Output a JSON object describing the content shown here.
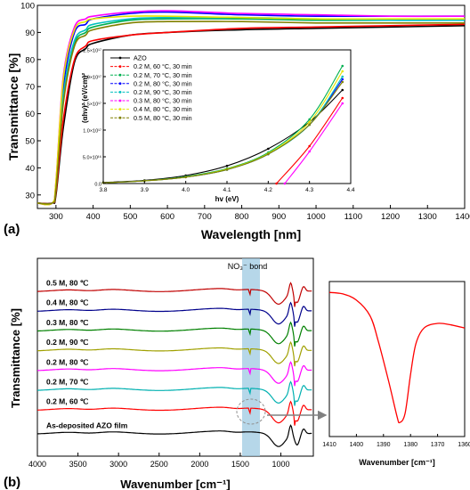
{
  "panel_a": {
    "label": "(a)",
    "xlabel": "Wavelength [nm]",
    "ylabel": "Transmittance [%]",
    "xticks": [
      "300",
      "400",
      "500",
      "600",
      "700",
      "800",
      "900",
      "1000",
      "1100",
      "1200",
      "1300",
      "1400"
    ],
    "yticks": [
      "30",
      "40",
      "50",
      "60",
      "70",
      "80",
      "90",
      "100"
    ],
    "inset": {
      "xlabel": "hv (eV)",
      "ylabel": "(αhν)² (eV/cm)²",
      "xticks": [
        "3.8",
        "3.9",
        "4.0",
        "4.1",
        "4.2",
        "4.3",
        "4.4"
      ],
      "yticks": [
        "0.0",
        "5.0×10¹⁶",
        "1.0×10¹⁷",
        "1.5×10¹⁷",
        "2.0×10¹⁷",
        "2.5×10¹⁷"
      ],
      "legend": [
        {
          "name": "AZO",
          "color": "#000000"
        },
        {
          "name": "0.2 M, 60 °C, 30 min",
          "color": "#ff0000"
        },
        {
          "name": "0.2 M, 70 °C, 30 min",
          "color": "#00b050"
        },
        {
          "name": "0.2 M, 80 °C, 30 min",
          "color": "#0000ff"
        },
        {
          "name": "0.2 M, 90 °C, 30 min",
          "color": "#00c0c0"
        },
        {
          "name": "0.3 M, 80 °C, 30 min",
          "color": "#ff00ff"
        },
        {
          "name": "0.4 M, 80 °C, 30 min",
          "color": "#e6e600"
        },
        {
          "name": "0.5 M, 80 °C, 30 min",
          "color": "#808000"
        }
      ]
    }
  },
  "panel_b": {
    "label": "(b)",
    "xlabel": "Wavenumber [cm⁻¹]",
    "ylabel": "Transmittance [%]",
    "xticks": [
      "4000",
      "3500",
      "3000",
      "2500",
      "2000",
      "1500",
      "1000"
    ],
    "annotation": "NO₃⁻ bond",
    "trace_labels": [
      "0.5 M, 80 ℃",
      "0.4 M, 80 ℃",
      "0.3 M, 80 ℃",
      "0.2 M, 90 ℃",
      "0.2 M, 80 ℃",
      "0.2 M, 70 ℃",
      "0.2 M, 60 ℃",
      "As-deposited AZO film"
    ],
    "zoom": {
      "xlabel": "Wavenumber [cm⁻¹]",
      "xticks": [
        "1410",
        "1400",
        "1390",
        "1380",
        "1370",
        "1360"
      ]
    }
  },
  "chart_data": [
    {
      "type": "line",
      "xlabel": "Wavelength [nm]",
      "ylabel": "Transmittance [%]",
      "xlim": [
        250,
        1400
      ],
      "ylim": [
        25,
        100
      ],
      "grid": false,
      "series": [
        {
          "name": "AZO",
          "color": "#000000",
          "x": [
            250,
            290,
            300,
            320,
            350,
            380,
            400,
            500,
            600,
            800,
            1000,
            1200,
            1400
          ],
          "y": [
            27,
            27,
            30,
            55,
            79,
            84,
            86,
            89,
            90,
            91,
            91.5,
            92,
            92.5
          ]
        },
        {
          "name": "0.2 M, 60 °C, 30 min",
          "color": "#ff0000",
          "x": [
            250,
            290,
            300,
            320,
            350,
            380,
            400,
            500,
            600,
            800,
            1000,
            1200,
            1400
          ],
          "y": [
            27,
            27,
            31,
            58,
            80,
            85,
            87,
            89,
            90,
            91.5,
            92,
            92.5,
            93
          ]
        },
        {
          "name": "0.2 M, 70 °C, 30 min",
          "color": "#00b050",
          "x": [
            250,
            290,
            300,
            320,
            350,
            380,
            400,
            500,
            600,
            800,
            1000,
            1200,
            1400
          ],
          "y": [
            27,
            27,
            33,
            66,
            86,
            90,
            92,
            94.5,
            95,
            95,
            94.5,
            94.5,
            94.5
          ]
        },
        {
          "name": "0.2 M, 80 °C, 30 min",
          "color": "#0000ff",
          "x": [
            250,
            290,
            300,
            320,
            350,
            380,
            400,
            500,
            600,
            800,
            1000,
            1200,
            1400
          ],
          "y": [
            27,
            27,
            34,
            70,
            90,
            93,
            95,
            97,
            97.5,
            96.5,
            96,
            96,
            96
          ]
        },
        {
          "name": "0.2 M, 90 °C, 30 min",
          "color": "#00c0c0",
          "x": [
            250,
            290,
            300,
            320,
            350,
            380,
            400,
            500,
            600,
            800,
            1000,
            1200,
            1400
          ],
          "y": [
            27,
            27,
            33,
            67,
            87,
            91,
            93,
            95,
            95.5,
            95.5,
            95,
            94.5,
            94.5
          ]
        },
        {
          "name": "0.3 M, 80 °C, 30 min",
          "color": "#ff00ff",
          "x": [
            250,
            290,
            300,
            320,
            350,
            380,
            400,
            500,
            600,
            800,
            1000,
            1200,
            1400
          ],
          "y": [
            27,
            27,
            35,
            74,
            92,
            95,
            96,
            97.5,
            98,
            97,
            96.5,
            96,
            96
          ]
        },
        {
          "name": "0.4 M, 80 °C, 30 min",
          "color": "#e6e600",
          "x": [
            250,
            290,
            300,
            320,
            350,
            380,
            400,
            500,
            600,
            800,
            1000,
            1200,
            1400
          ],
          "y": [
            27,
            27,
            35,
            73,
            91,
            94,
            95,
            96,
            96,
            95.5,
            95,
            95,
            95
          ]
        },
        {
          "name": "0.5 M, 80 °C, 30 min",
          "color": "#808000",
          "x": [
            250,
            290,
            300,
            320,
            350,
            380,
            400,
            500,
            600,
            800,
            1000,
            1200,
            1400
          ],
          "y": [
            27,
            27,
            32,
            64,
            85,
            89,
            91,
            93.5,
            94,
            94,
            93.5,
            93.5,
            93.5
          ]
        }
      ]
    },
    {
      "type": "line",
      "xlabel": "hv (eV)",
      "ylabel": "(αhν)² (eV/cm)²",
      "xlim": [
        3.8,
        4.4
      ],
      "ylim": [
        0,
        2.5e+17
      ],
      "legend": "top-left",
      "series": [
        {
          "name": "AZO",
          "color": "#000000",
          "x": [
            3.8,
            3.9,
            4.0,
            4.1,
            4.2,
            4.3,
            4.38
          ],
          "y": [
            2000000000000000.0,
            6000000000000000.0,
            1.5e+16,
            3.3e+16,
            6.5e+16,
            1.15e+17,
            1.75e+17
          ]
        },
        {
          "name": "0.2 M, 60 °C, 30 min",
          "color": "#ff0000",
          "x": [
            4.22,
            4.3,
            4.38
          ],
          "y": [
            0,
            7e+16,
            1.6e+17
          ]
        },
        {
          "name": "0.2 M, 70 °C, 30 min",
          "color": "#00b050",
          "x": [
            3.8,
            3.9,
            4.0,
            4.1,
            4.2,
            4.3,
            4.38
          ],
          "y": [
            1500000000000000.0,
            5000000000000000.0,
            1.3e+16,
            2.8e+16,
            5.8e+16,
            1.2e+17,
            2.2e+17
          ]
        },
        {
          "name": "0.2 M, 80 °C, 30 min",
          "color": "#0000ff",
          "x": [
            3.8,
            3.9,
            4.0,
            4.1,
            4.2,
            4.3,
            4.38
          ],
          "y": [
            1500000000000000.0,
            5000000000000000.0,
            1.2e+16,
            2.6e+16,
            5.5e+16,
            1.1e+17,
            1.95e+17
          ]
        },
        {
          "name": "0.2 M, 90 °C, 30 min",
          "color": "#00c0c0",
          "x": [
            3.8,
            3.9,
            4.0,
            4.1,
            4.2,
            4.3,
            4.38
          ],
          "y": [
            1500000000000000.0,
            5000000000000000.0,
            1.2e+16,
            2.6e+16,
            5.5e+16,
            1.1e+17,
            2e+17
          ]
        },
        {
          "name": "0.3 M, 80 °C, 30 min",
          "color": "#ff00ff",
          "x": [
            4.24,
            4.3,
            4.38
          ],
          "y": [
            0,
            6e+16,
            1.5e+17
          ]
        },
        {
          "name": "0.4 M, 80 °C, 30 min",
          "color": "#e6e600",
          "x": [
            3.8,
            3.9,
            4.0,
            4.1,
            4.2,
            4.3,
            4.38
          ],
          "y": [
            1500000000000000.0,
            5000000000000000.0,
            1.2e+16,
            2.7e+16,
            5.6e+16,
            1.15e+17,
            2.1e+17
          ]
        },
        {
          "name": "0.5 M, 80 °C, 30 min",
          "color": "#808000",
          "x": [
            3.8,
            3.9,
            4.0,
            4.1,
            4.2,
            4.3,
            4.38
          ],
          "y": [
            1500000000000000.0,
            5000000000000000.0,
            1.2e+16,
            2.6e+16,
            5.5e+16,
            1.1e+17,
            1.9e+17
          ]
        }
      ]
    },
    {
      "type": "line",
      "xlabel": "Wavenumber [cm⁻¹]",
      "ylabel": "Transmittance [%]",
      "xlim": [
        4000,
        600
      ],
      "ylim": [
        0,
        10
      ],
      "annotation": {
        "text": "NO₃⁻ bond",
        "x_range": [
          1500,
          1280
        ]
      },
      "series": [
        {
          "name": "0.5 M, 80 ℃",
          "color": "#c00000",
          "offset": 8.4
        },
        {
          "name": "0.4 M, 80 ℃",
          "color": "#00008b",
          "offset": 7.4
        },
        {
          "name": "0.3 M, 80 ℃",
          "color": "#008000",
          "offset": 6.4
        },
        {
          "name": "0.2 M, 90 ℃",
          "color": "#a0a000",
          "offset": 5.4
        },
        {
          "name": "0.2 M, 80 ℃",
          "color": "#ff00ff",
          "offset": 4.4
        },
        {
          "name": "0.2 M, 70 ℃",
          "color": "#00b0b0",
          "offset": 3.4
        },
        {
          "name": "0.2 M, 60 ℃",
          "color": "#ff0000",
          "offset": 2.4
        },
        {
          "name": "As-deposited AZO film",
          "color": "#000000",
          "offset": 1.2
        }
      ]
    },
    {
      "type": "line",
      "xlabel": "Wavenumber [cm⁻¹]",
      "xlim": [
        1410,
        1360
      ],
      "series": [
        {
          "name": "0.2 M, 60 ℃",
          "color": "#ff0000",
          "x": [
            1410,
            1405,
            1400,
            1395,
            1392,
            1388,
            1385,
            1384,
            1382,
            1380,
            1378,
            1375,
            1370,
            1365,
            1360
          ],
          "y": [
            0.93,
            0.92,
            0.88,
            0.78,
            0.62,
            0.35,
            0.13,
            0.09,
            0.15,
            0.4,
            0.6,
            0.7,
            0.73,
            0.72,
            0.7
          ]
        }
      ]
    }
  ]
}
